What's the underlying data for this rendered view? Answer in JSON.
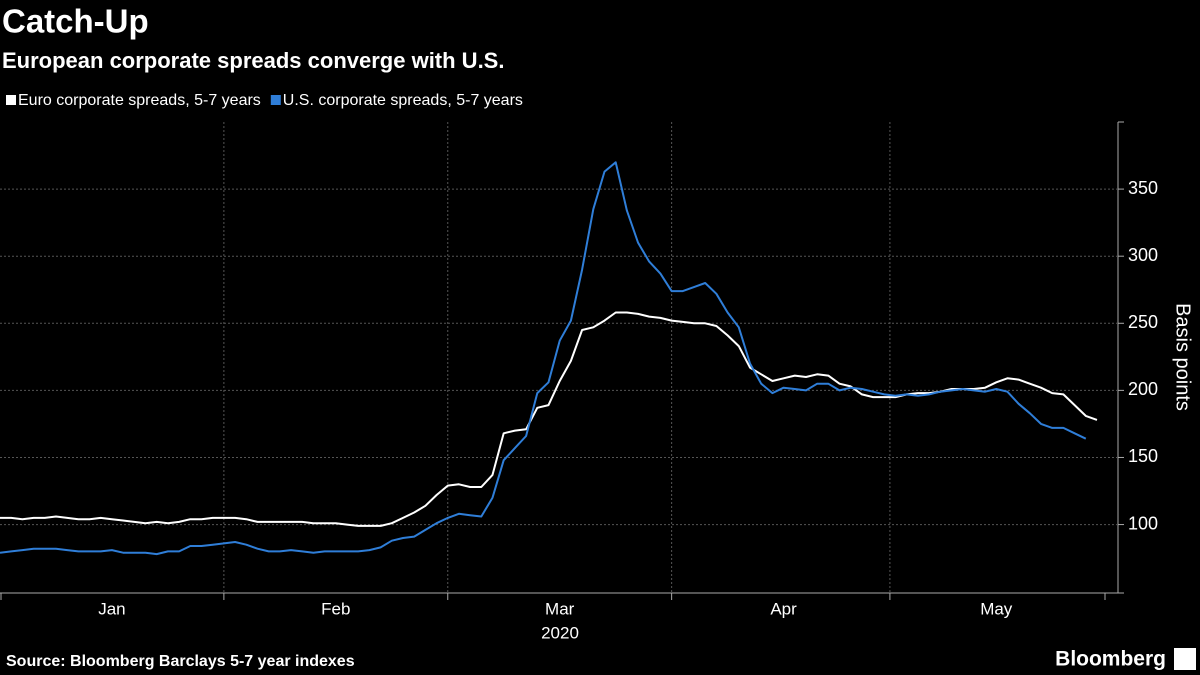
{
  "chart_data": {
    "type": "line",
    "title": "Catch-Up",
    "subtitle": "European corporate spreads converge with U.S.",
    "y_axis_label": "Basis points",
    "x_year_label": "2020",
    "source": "Source: Bloomberg Barclays 5-7 year indexes",
    "brand": "Bloomberg",
    "categories": [
      null,
      null,
      null,
      null,
      null,
      null,
      null,
      null,
      null,
      null,
      "Jan",
      null,
      null,
      null,
      null,
      null,
      null,
      null,
      null,
      null,
      null,
      null,
      null,
      null,
      null,
      null,
      null,
      null,
      null,
      null,
      "Feb",
      null,
      null,
      null,
      null,
      null,
      null,
      null,
      null,
      null,
      null,
      null,
      null,
      null,
      null,
      null,
      null,
      null,
      null,
      null,
      "Mar",
      null,
      null,
      null,
      null,
      null,
      null,
      null,
      null,
      null,
      null,
      null,
      null,
      null,
      null,
      null,
      null,
      null,
      null,
      null,
      "Apr",
      null,
      null,
      null,
      null,
      null,
      null,
      null,
      null,
      null,
      null,
      null,
      null,
      null,
      null,
      null,
      null,
      null,
      null,
      "May",
      null,
      null,
      null,
      null,
      null,
      null,
      null,
      null,
      null
    ],
    "series": [
      {
        "name": "Euro corporate spreads, 5-7 years",
        "color": "#ffffff",
        "values": [
          105,
          105,
          104,
          105,
          105,
          106,
          105,
          104,
          104,
          105,
          104,
          103,
          102,
          101,
          102,
          101,
          102,
          104,
          104,
          105,
          105,
          105,
          104,
          102,
          102,
          102,
          102,
          102,
          101,
          101,
          101,
          100,
          99,
          99,
          99,
          101,
          105,
          109,
          114,
          122,
          129,
          130,
          128,
          128,
          137,
          168,
          170,
          171,
          187,
          189,
          207,
          222,
          245,
          247,
          252,
          258,
          258,
          257,
          255,
          254,
          252,
          251,
          250,
          250,
          248,
          241,
          233,
          217,
          212,
          207,
          209,
          211,
          210,
          212,
          211,
          205,
          203,
          197,
          195,
          195,
          195,
          197,
          198,
          198,
          199,
          201,
          201,
          201,
          202,
          206,
          209,
          208,
          205,
          202,
          198,
          197,
          189,
          181,
          178
        ]
      },
      {
        "name": "U.S. corporate spreads, 5-7 years",
        "color": "#2f7ed8",
        "values": [
          79,
          80,
          81,
          82,
          82,
          82,
          81,
          80,
          80,
          80,
          81,
          79,
          79,
          79,
          78,
          80,
          80,
          84,
          84,
          85,
          86,
          87,
          85,
          82,
          80,
          80,
          81,
          80,
          79,
          80,
          80,
          80,
          80,
          81,
          83,
          88,
          90,
          91,
          96,
          101,
          105,
          108,
          107,
          106,
          120,
          148,
          157,
          166,
          198,
          206,
          237,
          252,
          290,
          335,
          363,
          370,
          334,
          310,
          296,
          287,
          274,
          274,
          277,
          280,
          272,
          258,
          247,
          220,
          205,
          198,
          202,
          201,
          200,
          205,
          205,
          200,
          202,
          201,
          199,
          197,
          196,
          197,
          196,
          197,
          199,
          200,
          201,
          200,
          199,
          201,
          199,
          190,
          183,
          175,
          172,
          172,
          168,
          164,
          null
        ]
      }
    ],
    "ylim": [
      49,
      400
    ],
    "yticks": [
      100,
      150,
      200,
      250,
      300,
      350
    ],
    "grid": true,
    "legend": "top-left"
  }
}
